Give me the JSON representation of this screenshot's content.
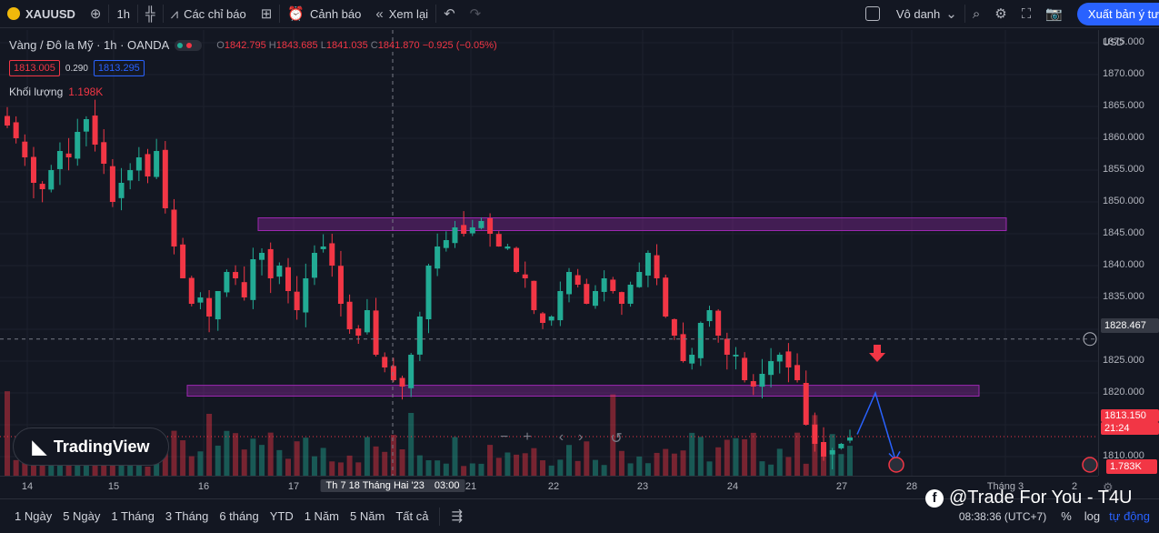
{
  "topbar": {
    "symbol": "XAUUSD",
    "interval": "1h",
    "indicators_label": "Các chỉ báo",
    "alert_label": "Cảnh báo",
    "replay_label": "Xem lại",
    "layout_label": "Vô danh",
    "publish_label": "Xuất bản ý tư"
  },
  "legend": {
    "title": "Vàng / Đô la Mỹ · 1h · OANDA",
    "o_label": "O",
    "o": "1842.795",
    "h_label": "H",
    "h": "1843.685",
    "l_label": "L",
    "l": "1841.035",
    "c_label": "C",
    "c": "1841.870",
    "change": "−0.925 (−0.05%)",
    "bid": "1813.005",
    "spread": "0.290",
    "ask": "1813.295",
    "volume_label": "Khối lượng",
    "volume_value": "1.198K"
  },
  "price_axis": {
    "currency": "USD",
    "crosshair_price": "1828.467",
    "last_price": "1813.150",
    "countdown": "21:24",
    "volume_tag": "1.783K",
    "ticks": [
      "1875.000",
      "1870.000",
      "1865.000",
      "1860.000",
      "1855.000",
      "1850.000",
      "1845.000",
      "1840.000",
      "1835.000",
      "1830.000",
      "1825.000",
      "1820.000",
      "1815.000",
      "1810.000"
    ]
  },
  "time_axis": {
    "labels": [
      "14",
      "15",
      "16",
      "17",
      "21",
      "22",
      "23",
      "24",
      "27",
      "28",
      "Tháng 3",
      "2"
    ],
    "cursor_label": "Th 7 18 Tháng Hai '23",
    "cursor_time": "03:00"
  },
  "bottombar": {
    "ranges": [
      "1 Ngày",
      "5 Ngày",
      "1 Tháng",
      "3 Tháng",
      "6 tháng",
      "YTD",
      "1 Năm",
      "5 Năm",
      "Tất cả"
    ],
    "clock": "08:38:36 (UTC+7)",
    "percent": "%",
    "log": "log",
    "auto": "tự động"
  },
  "branding": {
    "tradingview": "TradingView",
    "watermark": "@Trade For You - T4U"
  },
  "colors": {
    "up": "#22ab94",
    "down": "#f23645",
    "zone": "#9c27b0",
    "accent": "#2962ff"
  },
  "chart_data": {
    "type": "candlestick",
    "ylim": [
      1807,
      1877
    ],
    "zones": [
      {
        "low": 1845.5,
        "high": 1847.5
      },
      {
        "low": 1819.5,
        "high": 1821.2
      }
    ],
    "crosshair_price": 1828.467,
    "last_price": 1813.15,
    "closes": [
      1862,
      1860,
      1857,
      1853,
      1852,
      1855,
      1858,
      1857,
      1861,
      1863,
      1859,
      1856,
      1850,
      1853,
      1855,
      1857,
      1854,
      1858,
      1849,
      1843,
      1838,
      1834,
      1835,
      1832,
      1836,
      1839,
      1838,
      1835,
      1841,
      1842,
      1838,
      1840,
      1836,
      1833,
      1838,
      1842,
      1843,
      1840,
      1834,
      1830,
      1829,
      1833,
      1826,
      1824,
      1822,
      1821,
      1826,
      1832,
      1840,
      1843,
      1844,
      1846,
      1845,
      1846,
      1847,
      1845,
      1843,
      1843,
      1839,
      1838,
      1833,
      1831,
      1832,
      1836,
      1839,
      1837,
      1834,
      1836,
      1838,
      1836,
      1834,
      1837,
      1839,
      1842,
      1838,
      1832,
      1829,
      1825,
      1826,
      1831,
      1833,
      1829,
      1826,
      1826,
      1822,
      1821,
      1823,
      1825,
      1826,
      1824,
      1822,
      1815,
      1812,
      1810,
      1811,
      1812,
      1813
    ]
  }
}
